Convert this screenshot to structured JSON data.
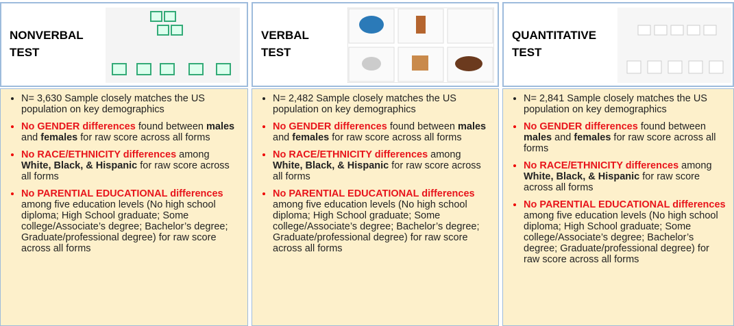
{
  "columns": [
    {
      "title": [
        "NONVERBAL",
        "TEST"
      ],
      "bullets": [
        [
          {
            "text": "N= 3,630 Sample closely matches the US population on key demographics",
            "style": "normal"
          }
        ],
        [
          {
            "text": "No GENDER differences",
            "style": "red"
          },
          {
            "text": " found between ",
            "style": "normal"
          },
          {
            "text": "males",
            "style": "bold"
          },
          {
            "text": " and ",
            "style": "normal"
          },
          {
            "text": "females",
            "style": "bold"
          },
          {
            "text": " for raw score across all forms",
            "style": "normal"
          }
        ],
        [
          {
            "text": "No RACE/ETHNICITY differences",
            "style": "red"
          },
          {
            "text": " among ",
            "style": "normal"
          },
          {
            "text": "White, Black, & Hispanic",
            "style": "bold"
          },
          {
            "text": " for raw score across all forms",
            "style": "normal"
          }
        ],
        [
          {
            "text": "No PARENTIAL EDUCATIONAL differences",
            "style": "red"
          },
          {
            "text": " among five education levels (No high school diploma; High School graduate; Some college/Associate’s degree; Bachelor’s degree; Graduate/professional degree) for raw score across all forms",
            "style": "normal"
          }
        ]
      ]
    },
    {
      "title": [
        "VERBAL",
        "TEST"
      ],
      "bullets": [
        [
          {
            "text": "N= 2,482 Sample closely matches the US population on key demographics",
            "style": "normal"
          }
        ],
        [
          {
            "text": "No GENDER differences",
            "style": "red"
          },
          {
            "text": " found between ",
            "style": "normal"
          },
          {
            "text": "males",
            "style": "bold"
          },
          {
            "text": " and ",
            "style": "normal"
          },
          {
            "text": "females",
            "style": "bold"
          },
          {
            "text": " for raw score across all forms",
            "style": "normal"
          }
        ],
        [
          {
            "text": "No RACE/ETHNICITY differences",
            "style": "red"
          },
          {
            "text": " among ",
            "style": "normal"
          },
          {
            "text": "White, Black, & Hispanic",
            "style": "bold"
          },
          {
            "text": " for raw score across all forms",
            "style": "normal"
          }
        ],
        [
          {
            "text": "No PARENTIAL EDUCATIONAL differences",
            "style": "red"
          },
          {
            "text": " among five education levels (No high school diploma; High School graduate; Some college/Associate’s degree; Bachelor’s degree; Graduate/professional degree) for raw score across all forms",
            "style": "normal"
          }
        ]
      ]
    },
    {
      "title": [
        "QUANTITATIVE",
        "TEST"
      ],
      "bullets": [
        [
          {
            "text": "N= 2,841 Sample closely matches the US population on key demographics",
            "style": "normal"
          }
        ],
        [
          {
            "text": "No GENDER differences",
            "style": "red"
          },
          {
            "text": " found between ",
            "style": "normal"
          },
          {
            "text": "males",
            "style": "bold"
          },
          {
            "text": " and ",
            "style": "normal"
          },
          {
            "text": "females",
            "style": "bold"
          },
          {
            "text": " for raw score across all forms",
            "style": "normal"
          }
        ],
        [
          {
            "text": "No RACE/ETHNICITY differences",
            "style": "red"
          },
          {
            "text": " among ",
            "style": "normal"
          },
          {
            "text": "White, Black, & Hispanic",
            "style": "bold"
          },
          {
            "text": " for raw score across all forms",
            "style": "normal"
          }
        ],
        [
          {
            "text": "No PARENTIAL EDUCATIONAL differences",
            "style": "red"
          },
          {
            "text": " among five education levels (No high school diploma; High School graduate; Some college/Associate’s degree; Bachelor’s degree; Graduate/professional degree) for raw score across all forms",
            "style": "normal"
          }
        ]
      ]
    }
  ]
}
